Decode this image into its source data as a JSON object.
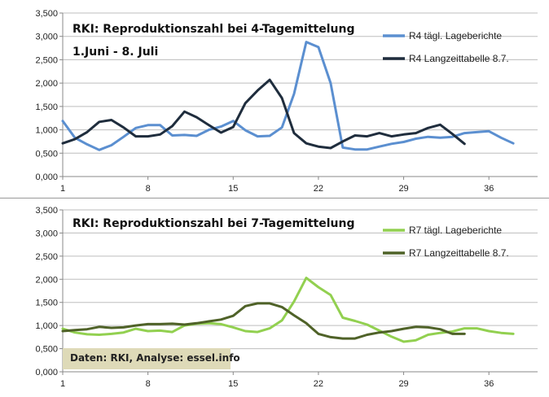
{
  "chart_data": [
    {
      "type": "line",
      "title": "RKI: Reproduktionszahl bei 4-Tagemittelung",
      "subtitle": "1.Juni - 8. Juli",
      "ylim": [
        0,
        3.5
      ],
      "y_ticks": [
        "0,000",
        "0,500",
        "1,000",
        "1,500",
        "2,000",
        "2,500",
        "3,000",
        "3,500"
      ],
      "x_ticks": [
        "1",
        "8",
        "15",
        "22",
        "29",
        "36"
      ],
      "x_range": [
        1,
        40
      ],
      "series": [
        {
          "name": "R4 tägl. Lageberichte",
          "color": "#5b8fd0",
          "x": [
            1,
            2,
            3,
            4,
            5,
            6,
            7,
            8,
            9,
            10,
            11,
            12,
            13,
            14,
            15,
            16,
            17,
            18,
            19,
            20,
            21,
            22,
            23,
            24,
            25,
            26,
            27,
            28,
            29,
            30,
            31,
            32,
            33,
            34,
            35,
            36,
            37,
            38
          ],
          "values": [
            1.19,
            0.83,
            0.69,
            0.57,
            0.67,
            0.85,
            1.04,
            1.1,
            1.1,
            0.88,
            0.89,
            0.87,
            1.0,
            1.07,
            1.19,
            0.99,
            0.86,
            0.87,
            1.05,
            1.77,
            2.88,
            2.77,
            2.0,
            0.62,
            0.58,
            0.58,
            0.64,
            0.7,
            0.74,
            0.81,
            0.85,
            0.83,
            0.85,
            0.93,
            0.95,
            0.97,
            0.83,
            0.71
          ]
        },
        {
          "name": "R4 Langzeittabelle 8.7.",
          "color": "#1f2d3d",
          "x": [
            1,
            2,
            3,
            4,
            5,
            6,
            7,
            8,
            9,
            10,
            11,
            12,
            13,
            14,
            15,
            16,
            17,
            18,
            19,
            20,
            21,
            22,
            23,
            24,
            25,
            26,
            27,
            28,
            29,
            30,
            31,
            32,
            33,
            34
          ],
          "values": [
            0.71,
            0.8,
            0.95,
            1.17,
            1.21,
            1.05,
            0.86,
            0.86,
            0.9,
            1.08,
            1.39,
            1.27,
            1.1,
            0.94,
            1.06,
            1.57,
            1.84,
            2.07,
            1.68,
            0.93,
            0.71,
            0.64,
            0.61,
            0.75,
            0.88,
            0.86,
            0.93,
            0.86,
            0.9,
            0.93,
            1.04,
            1.11,
            0.91,
            0.7
          ]
        }
      ]
    },
    {
      "type": "line",
      "title": "RKI: Reproduktionszahl bei 7-Tagemittelung",
      "ylim": [
        0,
        3.5
      ],
      "y_ticks": [
        "0,000",
        "0,500",
        "1,000",
        "1,500",
        "2,000",
        "2,500",
        "3,000",
        "3,500"
      ],
      "x_ticks": [
        "1",
        "8",
        "15",
        "22",
        "29",
        "36"
      ],
      "x_range": [
        1,
        40
      ],
      "series": [
        {
          "name": "R7 tägl.  Lageberichte",
          "color": "#92d050",
          "x": [
            1,
            2,
            3,
            4,
            5,
            6,
            7,
            8,
            9,
            10,
            11,
            12,
            13,
            14,
            15,
            16,
            17,
            18,
            19,
            20,
            21,
            22,
            23,
            24,
            25,
            26,
            27,
            28,
            29,
            30,
            31,
            32,
            33,
            34,
            35,
            36,
            37,
            38
          ],
          "values": [
            0.93,
            0.85,
            0.81,
            0.8,
            0.82,
            0.85,
            0.93,
            0.88,
            0.89,
            0.86,
            1.0,
            1.04,
            1.05,
            1.03,
            0.96,
            0.88,
            0.86,
            0.94,
            1.11,
            1.52,
            2.03,
            1.83,
            1.66,
            1.17,
            1.1,
            1.02,
            0.89,
            0.76,
            0.65,
            0.68,
            0.8,
            0.84,
            0.87,
            0.94,
            0.94,
            0.88,
            0.84,
            0.82
          ]
        },
        {
          "name": "R7 Langzeittabelle 8.7.",
          "color": "#4f6228",
          "x": [
            1,
            2,
            3,
            4,
            5,
            6,
            7,
            8,
            9,
            10,
            11,
            12,
            13,
            14,
            15,
            16,
            17,
            18,
            19,
            20,
            21,
            22,
            23,
            24,
            25,
            26,
            27,
            28,
            29,
            30,
            31,
            32,
            33,
            34
          ],
          "values": [
            0.88,
            0.9,
            0.92,
            0.97,
            0.95,
            0.96,
            1.0,
            1.03,
            1.03,
            1.04,
            1.02,
            1.05,
            1.09,
            1.13,
            1.21,
            1.42,
            1.48,
            1.48,
            1.4,
            1.22,
            1.05,
            0.82,
            0.75,
            0.72,
            0.72,
            0.8,
            0.85,
            0.88,
            0.93,
            0.97,
            0.96,
            0.92,
            0.82,
            0.82
          ]
        }
      ],
      "annotation": "Daten: RKI, Analyse: essel.info"
    }
  ]
}
